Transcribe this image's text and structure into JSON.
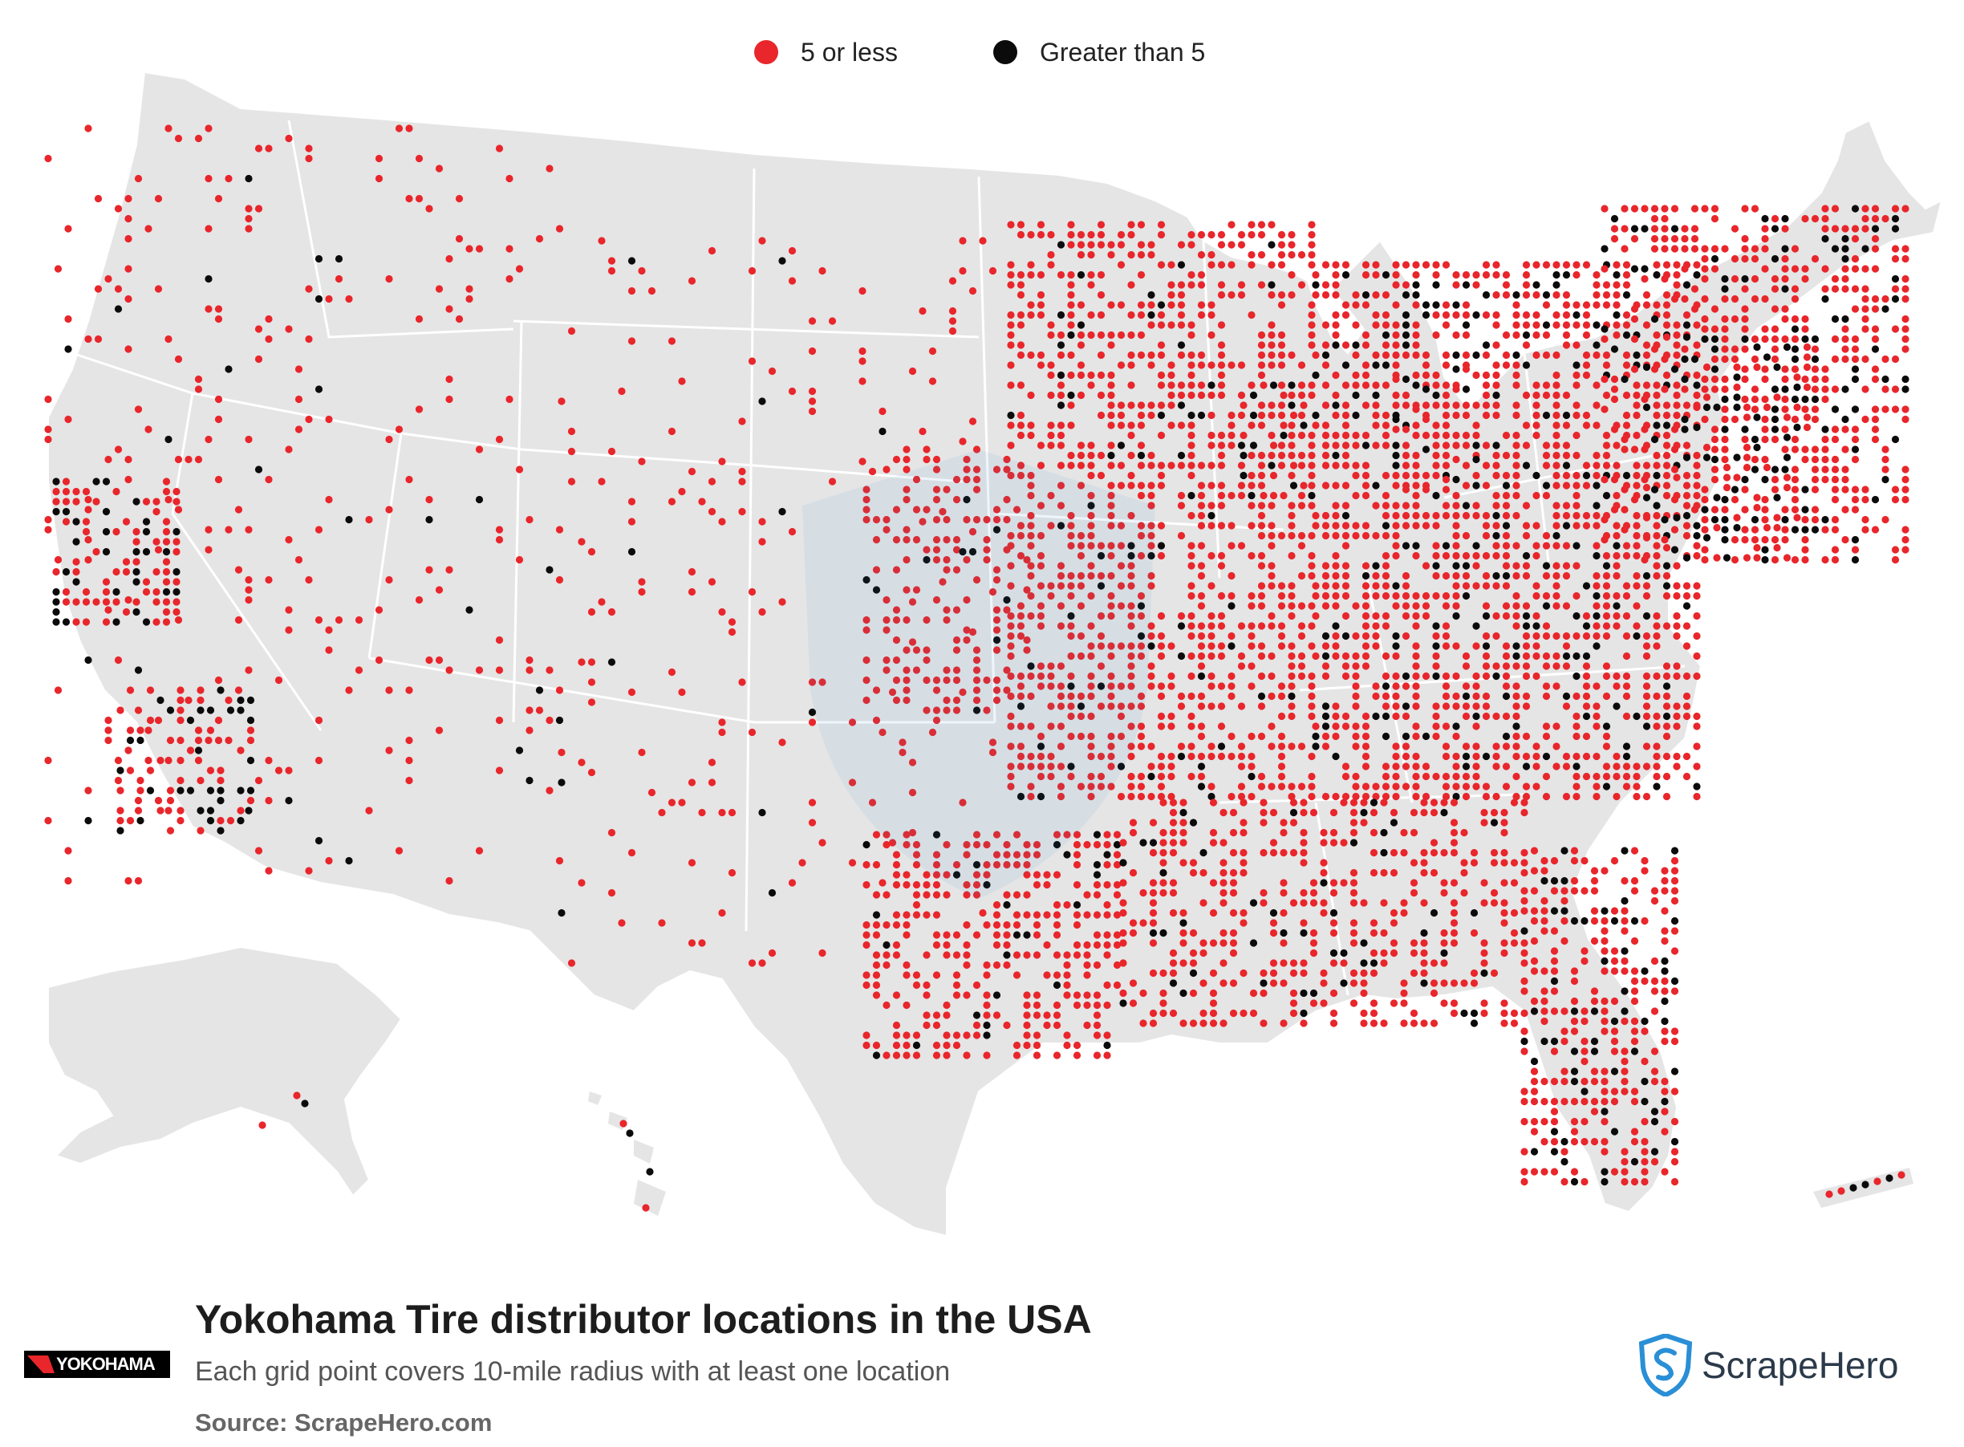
{
  "legend": {
    "items": [
      {
        "label": "5 or less",
        "color": "#e8262b"
      },
      {
        "label": "Greater than 5",
        "color": "#0b0b0b"
      }
    ]
  },
  "title": "Yokohama Tire distributor locations in the USA",
  "subtitle": "Each grid point covers 10-mile radius with at least one location",
  "source": "Source: ScrapeHero.com",
  "brand_logo": {
    "text": "YOKOHAMA",
    "icon": "yokohama-logo"
  },
  "publisher_logo": {
    "text": "ScrapeHero",
    "icon": "scrapehero-shield-icon",
    "color": "#2a8fd6"
  },
  "colors": {
    "land": "#e5e5e5",
    "border": "#ffffff",
    "low": "#e8262b",
    "high": "#0b0b0b"
  }
}
